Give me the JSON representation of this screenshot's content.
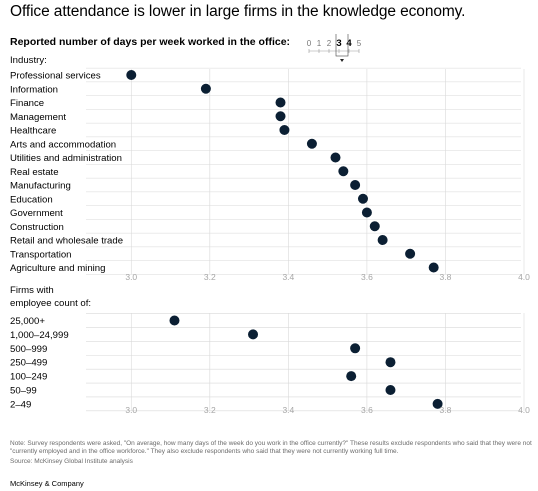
{
  "title": "Office attendance is lower in large firms in the knowledge economy.",
  "subtitle": "Reported number of days per week worked in the office:",
  "scale_legend": {
    "labels": [
      "0",
      "1",
      "2",
      "3",
      "4",
      "5"
    ],
    "highlight": [
      "3",
      "4"
    ]
  },
  "colors": {
    "dot": "#0b1f33",
    "grid": "#d9d9d9",
    "axis_tick": "#a6a6a6",
    "note": "#6b6b6b"
  },
  "chart_data": [
    {
      "type": "scatter",
      "group_label": "Industry:",
      "categories": [
        "Professional services",
        "Information",
        "Finance",
        "Management",
        "Healthcare",
        "Arts and accommodation",
        "Utilities and administration",
        "Real estate",
        "Manufacturing",
        "Education",
        "Government",
        "Construction",
        "Retail and wholesale trade",
        "Transportation",
        "Agriculture and mining"
      ],
      "values": [
        3.0,
        3.19,
        3.38,
        3.38,
        3.39,
        3.46,
        3.52,
        3.54,
        3.57,
        3.59,
        3.6,
        3.62,
        3.64,
        3.71,
        3.77
      ],
      "xlim": [
        2.9,
        4.0
      ],
      "xticks": [
        "3.0",
        "3.2",
        "3.4",
        "3.6",
        "3.8",
        "4.0"
      ],
      "grid": true
    },
    {
      "type": "scatter",
      "group_label": "Firms with\nemployee count of:",
      "categories": [
        "25,000+",
        "1,000–24,999",
        "500–999",
        "250–499",
        "100–249",
        "50–99",
        "2–49"
      ],
      "values": [
        3.11,
        3.31,
        3.57,
        3.66,
        3.56,
        3.66,
        3.78
      ],
      "xlim": [
        2.9,
        4.0
      ],
      "xticks": [
        "3.0",
        "3.2",
        "3.4",
        "3.6",
        "3.8",
        "4.0"
      ],
      "grid": true
    }
  ],
  "note": "Note: Survey respondents were asked, \"On average, how many days of the week do you work in the office currently?\" These results exclude respondents who said that they were not \"currently employed and in the office workforce.\" They also exclude respondents who said that they were not currently working full time.",
  "source": "Source: McKinsey Global Institute analysis",
  "logo": "McKinsey & Company"
}
